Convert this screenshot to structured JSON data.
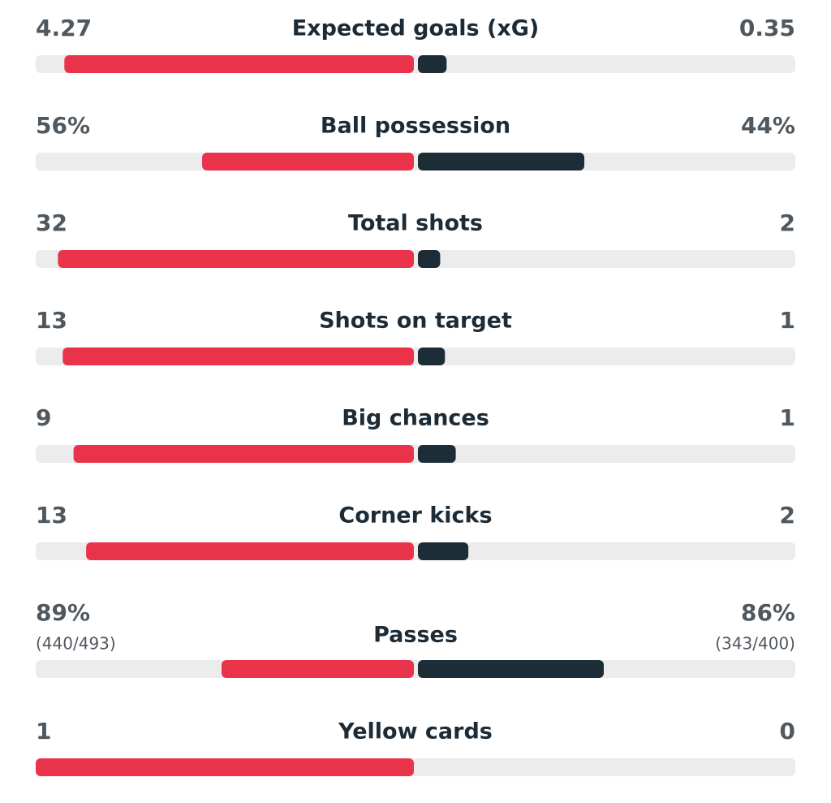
{
  "stats": [
    {
      "label": "Expected goals (xG)",
      "home": {
        "value": 4.27,
        "label": "4.27"
      },
      "away": {
        "value": 0.35,
        "label": "0.35"
      }
    },
    {
      "label": "Ball possession",
      "home": {
        "value": 56,
        "label": "56%"
      },
      "away": {
        "value": 44,
        "label": "44%"
      }
    },
    {
      "label": "Total shots",
      "home": {
        "value": 32,
        "label": "32"
      },
      "away": {
        "value": 2,
        "label": "2"
      }
    },
    {
      "label": "Shots on target",
      "home": {
        "value": 13,
        "label": "13"
      },
      "away": {
        "value": 1,
        "label": "1"
      }
    },
    {
      "label": "Big chances",
      "home": {
        "value": 9,
        "label": "9"
      },
      "away": {
        "value": 1,
        "label": "1"
      }
    },
    {
      "label": "Corner kicks",
      "home": {
        "value": 13,
        "label": "13"
      },
      "away": {
        "value": 2,
        "label": "2"
      }
    },
    {
      "label": "Passes",
      "home": {
        "value": 89,
        "label": "89%",
        "detail": "(440/493)"
      },
      "away": {
        "value": 86,
        "label": "86%",
        "detail": "(343/400)"
      }
    },
    {
      "label": "Yellow cards",
      "home": {
        "value": 1,
        "label": "1"
      },
      "away": {
        "value": 0,
        "label": "0"
      }
    }
  ]
}
